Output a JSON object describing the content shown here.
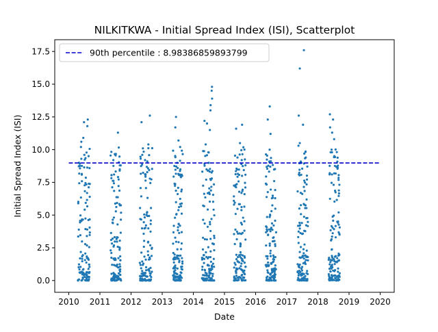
{
  "chart_data": {
    "type": "scatter",
    "title": "NILKITKWA - Initial Spread Index (ISI), Scatterplot",
    "xlabel": "Date",
    "ylabel": "Initial Spread Index (ISI)",
    "xlim": [
      2009.55,
      2020.45
    ],
    "ylim": [
      -0.9,
      18.4
    ],
    "grid": false,
    "legend_position": "top-left",
    "x_ticks": [
      {
        "value": 2010,
        "label": "2010"
      },
      {
        "value": 2011,
        "label": "2011"
      },
      {
        "value": 2012,
        "label": "2012"
      },
      {
        "value": 2013,
        "label": "2013"
      },
      {
        "value": 2014,
        "label": "2014"
      },
      {
        "value": 2015,
        "label": "2015"
      },
      {
        "value": 2016,
        "label": "2016"
      },
      {
        "value": 2017,
        "label": "2017"
      },
      {
        "value": 2018,
        "label": "2018"
      },
      {
        "value": 2019,
        "label": "2019"
      },
      {
        "value": 2020,
        "label": "2020"
      }
    ],
    "y_ticks": [
      {
        "value": 0.0,
        "label": "0.0"
      },
      {
        "value": 2.5,
        "label": "2.5"
      },
      {
        "value": 5.0,
        "label": "5.0"
      },
      {
        "value": 7.5,
        "label": "7.5"
      },
      {
        "value": 10.0,
        "label": "10.0"
      },
      {
        "value": 12.5,
        "label": "12.5"
      },
      {
        "value": 15.0,
        "label": "15.0"
      },
      {
        "value": 17.5,
        "label": "17.5"
      }
    ],
    "reference_line": {
      "label": "90th percentile : 8.98386859893799",
      "value": 8.98386859893799,
      "x_range": [
        2010,
        2020
      ],
      "color": "#0000cc",
      "style": "dashed"
    },
    "series_color": "#1f77b4",
    "seasons": [
      {
        "start": 2010.28,
        "end": 2010.68,
        "peaks": [
          12.3,
          12.1,
          11.8,
          10.9,
          10.6,
          10.2,
          9.6,
          9.3
        ]
      },
      {
        "start": 2011.34,
        "end": 2011.68,
        "peaks": [
          11.3,
          9.6,
          9.2,
          8.8,
          8.4,
          8.1
        ]
      },
      {
        "start": 2012.28,
        "end": 2012.68,
        "peaks": [
          12.6,
          12.1,
          10.4,
          10.1,
          9.6,
          9.2
        ]
      },
      {
        "start": 2013.35,
        "end": 2013.66,
        "peaks": [
          12.5,
          11.7,
          10.7,
          10.2,
          8.1,
          7.9
        ]
      },
      {
        "start": 2014.28,
        "end": 2014.68,
        "peaks": [
          14.8,
          14.5,
          13.9,
          13.4,
          13.0,
          12.2,
          12.0,
          11.5,
          10.4,
          9.8
        ]
      },
      {
        "start": 2015.3,
        "end": 2015.68,
        "peaks": [
          11.9,
          11.6,
          10.5,
          9.4,
          9.2,
          8.9
        ]
      },
      {
        "start": 2016.32,
        "end": 2016.66,
        "peaks": [
          13.3,
          12.3,
          11.2,
          10.0,
          9.1,
          8.7
        ]
      },
      {
        "start": 2017.34,
        "end": 2017.68,
        "peaks": [
          17.6,
          16.2,
          12.6,
          11.9,
          10.5,
          10.3,
          9.7,
          9.4
        ]
      },
      {
        "start": 2018.34,
        "end": 2018.7,
        "peaks": [
          12.7,
          12.3,
          11.7,
          11.3,
          10.8,
          10.0,
          9.8,
          9.5
        ]
      }
    ]
  }
}
